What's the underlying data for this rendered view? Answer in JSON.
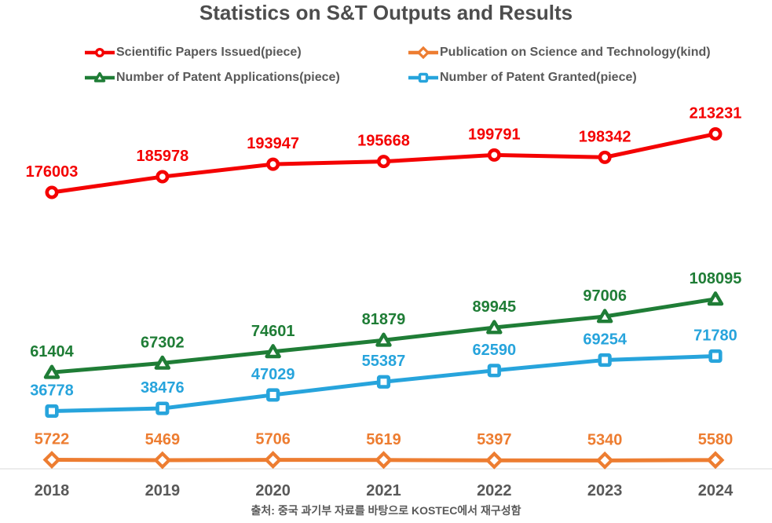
{
  "title": "Statistics on S&T Outputs and Results",
  "source_note": "출처: 중국 과기부 자료를 바탕으로 KOSTEC에서 재구성함",
  "chart_data": {
    "type": "line",
    "title": "Statistics on S&T Outputs and Results",
    "xlabel": "",
    "ylabel": "",
    "grid": false,
    "legend_position": "top",
    "data_labels": true,
    "ylim": [
      0,
      220000
    ],
    "categories": [
      "2018",
      "2019",
      "2020",
      "2021",
      "2022",
      "2023",
      "2024"
    ],
    "series": [
      {
        "id": "scientific-papers-issued",
        "name": "Scientific Papers Issued(piece)",
        "color": "#f40202",
        "marker": "circle",
        "values": [
          176003,
          185978,
          193947,
          195668,
          199791,
          198342,
          213231
        ]
      },
      {
        "id": "publication-science-technology",
        "name": "Publication on Science and Technology(kind)",
        "color": "#ed7d31",
        "marker": "diamond",
        "values": [
          5722,
          5469,
          5706,
          5619,
          5397,
          5340,
          5580
        ]
      },
      {
        "id": "patent-applications",
        "name": "Number of Patent Applications(piece)",
        "color": "#1f7d36",
        "marker": "triangle",
        "values": [
          61404,
          67302,
          74601,
          81879,
          89945,
          97006,
          108095
        ]
      },
      {
        "id": "patent-granted",
        "name": "Number of Patent Granted(piece)",
        "color": "#27a4dc",
        "marker": "square",
        "values": [
          36778,
          38476,
          47029,
          55387,
          62590,
          69254,
          71780
        ]
      }
    ],
    "axis_line_color": "#d9d9d9",
    "tick_label_color": "#595959"
  }
}
